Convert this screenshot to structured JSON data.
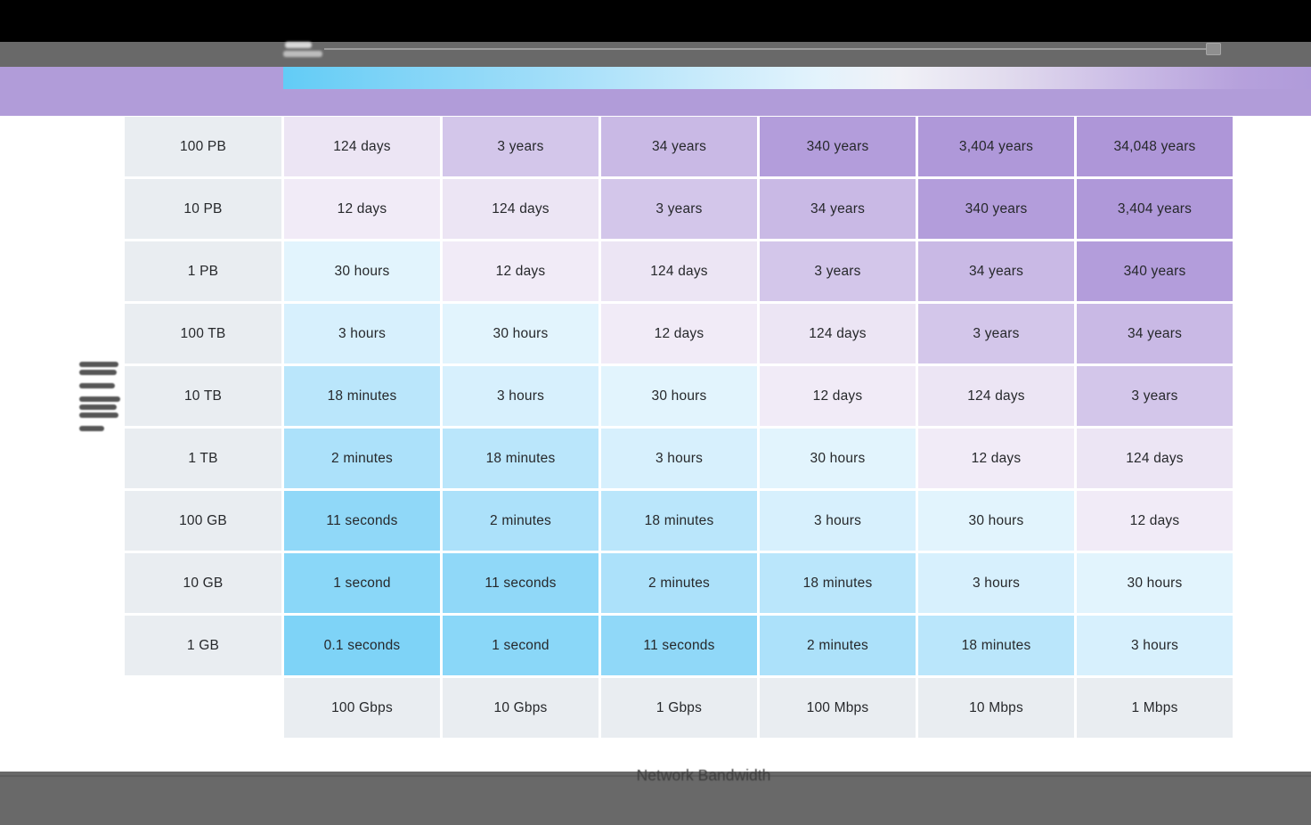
{
  "toolbar": {
    "has_slider": true
  },
  "color_legend": {
    "left_color": "#62CCF6",
    "right_color": "#B09BDA",
    "band_color": "#B19CD9",
    "meaning": "blue = short transfer time, purple = long transfer time"
  },
  "axes": {
    "x_label": "Network Bandwidth"
  },
  "chart_data": {
    "type": "heatmap",
    "x": [
      "100 Gbps",
      "10 Gbps",
      "1 Gbps",
      "100 Mbps",
      "10 Mbps",
      "1 Mbps"
    ],
    "y": [
      "100 PB",
      "10 PB",
      "1 PB",
      "100 TB",
      "10 TB",
      "1 TB",
      "100 GB",
      "10 GB",
      "1 GB"
    ],
    "xlabel": "Network Bandwidth",
    "ylabel": "",
    "values": [
      [
        "124 days",
        "3 years",
        "34 years",
        "340 years",
        "3,404 years",
        "34,048 years"
      ],
      [
        "12 days",
        "124 days",
        "3 years",
        "34 years",
        "340 years",
        "3,404 years"
      ],
      [
        "30 hours",
        "12 days",
        "124 days",
        "3 years",
        "34 years",
        "340 years"
      ],
      [
        "3 hours",
        "30 hours",
        "12 days",
        "124 days",
        "3 years",
        "34 years"
      ],
      [
        "18 minutes",
        "3 hours",
        "30 hours",
        "12 days",
        "124 days",
        "3 years"
      ],
      [
        "2 minutes",
        "18 minutes",
        "3 hours",
        "30 hours",
        "12 days",
        "124 days"
      ],
      [
        "11 seconds",
        "2 minutes",
        "18 minutes",
        "3 hours",
        "30 hours",
        "12 days"
      ],
      [
        "1 second",
        "11 seconds",
        "2 minutes",
        "18 minutes",
        "3 hours",
        "30 hours"
      ],
      [
        "0.1 seconds",
        "1 second",
        "11 seconds",
        "2 minutes",
        "18 minutes",
        "3 hours"
      ]
    ],
    "cell_colors": {
      "0.1 seconds": "#7ED3F7",
      "1 second": "#8AD7F8",
      "11 seconds": "#90D8F8",
      "2 minutes": "#ACE1FA",
      "18 minutes": "#BAE6FB",
      "3 hours": "#D7F0FD",
      "30 hours": "#E2F4FD",
      "12 days": "#F1EBF7",
      "124 days": "#ECE5F4",
      "3 years": "#D3C6EA",
      "34 years": "#C9B9E5",
      "340 years": "#B39DDB",
      "3,404 years": "#AF98D9",
      "34,048 years": "#AE96D8"
    },
    "header_bg": "#E9EDF1",
    "legend_position": "top",
    "grid": "white gaps between cells"
  }
}
